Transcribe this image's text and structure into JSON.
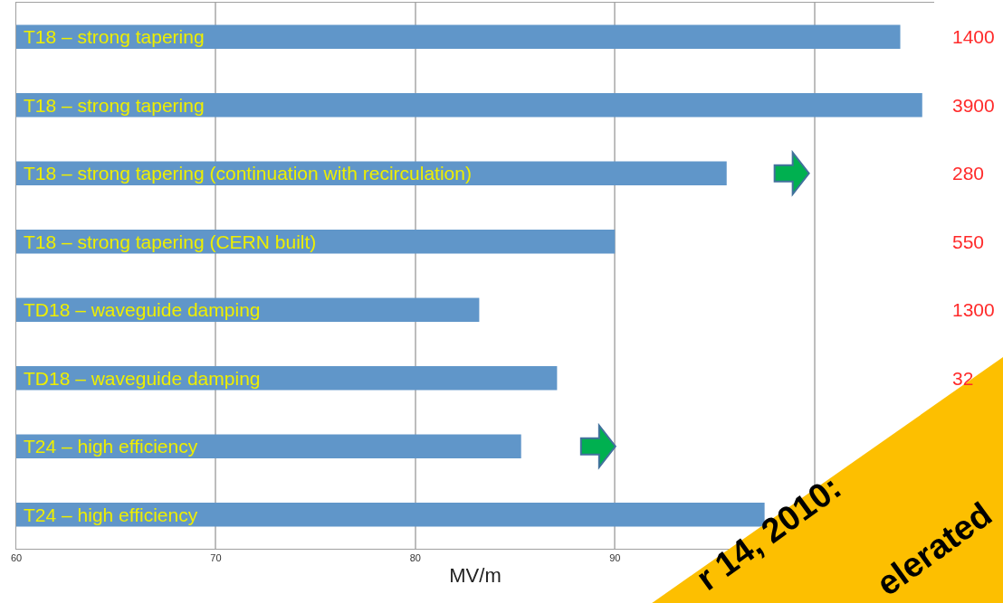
{
  "chart_data": {
    "type": "bar",
    "orientation": "horizontal",
    "xlabel": "MV/m",
    "categories": [
      "T18 – strong tapering",
      "T18 – strong tapering",
      "T18 – strong tapering (continuation with recirculation)",
      "T18 – strong tapering (CERN built)",
      "TD18 – waveguide damping",
      "TD18 – waveguide damping",
      "T24 – high efficiency",
      "T24 – high efficiency"
    ],
    "values": [
      104.3,
      105.4,
      95.6,
      90.0,
      83.2,
      87.1,
      85.3,
      97.5
    ],
    "color": "#6096c9",
    "xlim": [
      60,
      106
    ],
    "xticks": [
      60,
      70,
      80,
      90,
      {
        "value": 100,
        "label": null
      }
    ],
    "grid": "x",
    "legend": false,
    "annotations": [
      "r 14, 2010:",
      "elerated",
      "1400",
      "3900",
      "280",
      "550",
      "1300",
      "32"
    ]
  }
}
